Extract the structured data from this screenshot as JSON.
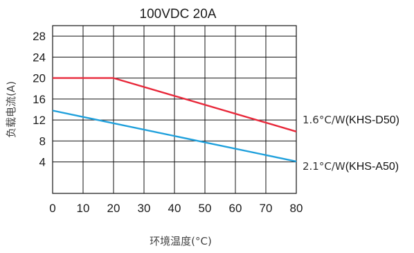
{
  "chart_data": {
    "type": "line",
    "title": "100VDC 20A",
    "xlabel": "环境温度(°C)",
    "ylabel": "负载电流(A)",
    "xlim": [
      0,
      80
    ],
    "ylim": [
      0,
      28
    ],
    "x_ticks": [
      "0",
      "10",
      "20",
      "30",
      "40",
      "50",
      "60",
      "70",
      "80"
    ],
    "y_ticks": [
      "28",
      "24",
      "20",
      "16",
      "12",
      "8",
      "4"
    ],
    "grid": true,
    "series": [
      {
        "name": "1.6°C/W(KHS-D50)",
        "thermal_resistance": "1.6°C/W",
        "model": "(KHS-D50)",
        "color": "#e8283a",
        "x": [
          0,
          20,
          80
        ],
        "y": [
          20,
          20,
          9.8
        ]
      },
      {
        "name": "2.1°C/W(KHS-A50)",
        "thermal_resistance": "2.1°C/W",
        "model": "(KHS-A50)",
        "color": "#1fa0dc",
        "x": [
          0,
          80
        ],
        "y": [
          13.8,
          4.1
        ]
      }
    ]
  }
}
